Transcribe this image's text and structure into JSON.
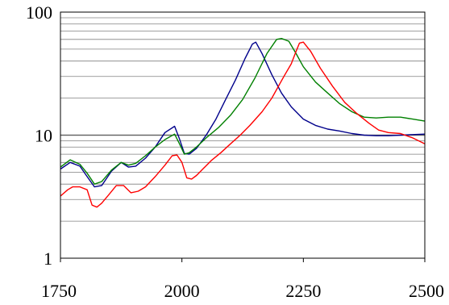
{
  "chart_data": {
    "type": "line",
    "title": "",
    "xlabel": "",
    "ylabel": "",
    "xlim": [
      1750,
      2500
    ],
    "ylim": [
      1,
      100
    ],
    "y_scale": "log",
    "grid": "horizontal minor log gridlines",
    "x_ticks": [
      1750,
      2000,
      2250,
      2500
    ],
    "x_tick_labels": [
      "1750",
      "2000",
      "2250",
      "2500"
    ],
    "y_ticks": [
      1,
      10,
      100
    ],
    "y_tick_labels": [
      "1",
      "10",
      "100"
    ],
    "colors": {
      "blue": "#00008b",
      "green": "#008000",
      "red": "#ff0000",
      "grid": "#808080",
      "axes": "#000000"
    },
    "series": [
      {
        "color": "#00008b",
        "x": [
          1750,
          1770,
          1790,
          1805,
          1820,
          1835,
          1855,
          1875,
          1890,
          1905,
          1925,
          1945,
          1965,
          1985,
          1995,
          2005,
          2015,
          2030,
          2050,
          2070,
          2090,
          2110,
          2130,
          2145,
          2152,
          2165,
          2185,
          2205,
          2225,
          2250,
          2275,
          2300,
          2325,
          2350,
          2375,
          2400,
          2425,
          2450,
          2475,
          2500
        ],
        "y": [
          5.3,
          6.0,
          5.6,
          4.6,
          3.8,
          3.9,
          5.1,
          6.0,
          5.5,
          5.6,
          6.5,
          8.0,
          10.5,
          11.8,
          9.3,
          7.1,
          7.0,
          7.8,
          10.0,
          13.5,
          19.5,
          28,
          42,
          55,
          57,
          46,
          31,
          22,
          17,
          13.5,
          12,
          11.2,
          10.8,
          10.3,
          10.0,
          9.9,
          9.9,
          10.0,
          10.1,
          10.2
        ]
      },
      {
        "color": "#008000",
        "x": [
          1750,
          1770,
          1790,
          1805,
          1820,
          1835,
          1855,
          1875,
          1890,
          1905,
          1925,
          1945,
          1965,
          1985,
          1995,
          2005,
          2015,
          2030,
          2050,
          2075,
          2100,
          2125,
          2150,
          2175,
          2195,
          2205,
          2220,
          2235,
          2250,
          2275,
          2300,
          2325,
          2350,
          2375,
          2400,
          2425,
          2450,
          2475,
          2500
        ],
        "y": [
          5.5,
          6.3,
          5.8,
          4.9,
          4.0,
          4.2,
          5.2,
          6.0,
          5.7,
          5.9,
          6.8,
          8.0,
          9.2,
          10.2,
          8.5,
          7.0,
          7.2,
          8.0,
          9.5,
          11.5,
          14.5,
          19.5,
          29,
          46,
          60,
          61,
          58,
          46,
          36,
          27,
          22,
          18,
          15.5,
          14,
          13.8,
          14,
          14,
          13.5,
          13
        ]
      },
      {
        "color": "#ff0000",
        "x": [
          1750,
          1765,
          1775,
          1790,
          1805,
          1815,
          1825,
          1835,
          1850,
          1865,
          1880,
          1895,
          1910,
          1925,
          1945,
          1965,
          1980,
          1990,
          2000,
          2010,
          2020,
          2030,
          2045,
          2060,
          2080,
          2100,
          2120,
          2140,
          2165,
          2185,
          2210,
          2225,
          2235,
          2242,
          2250,
          2265,
          2285,
          2310,
          2335,
          2360,
          2385,
          2405,
          2425,
          2450,
          2475,
          2500
        ],
        "y": [
          3.2,
          3.6,
          3.8,
          3.8,
          3.6,
          2.7,
          2.6,
          2.8,
          3.3,
          3.9,
          3.9,
          3.4,
          3.5,
          3.8,
          4.6,
          5.7,
          6.8,
          6.9,
          6.0,
          4.5,
          4.4,
          4.7,
          5.4,
          6.2,
          7.2,
          8.5,
          10.0,
          12.0,
          15.5,
          20,
          30,
          38,
          48,
          56,
          57,
          48,
          35,
          25,
          18.5,
          15.0,
          12.5,
          11.0,
          10.5,
          10.3,
          9.5,
          8.5
        ]
      }
    ]
  }
}
